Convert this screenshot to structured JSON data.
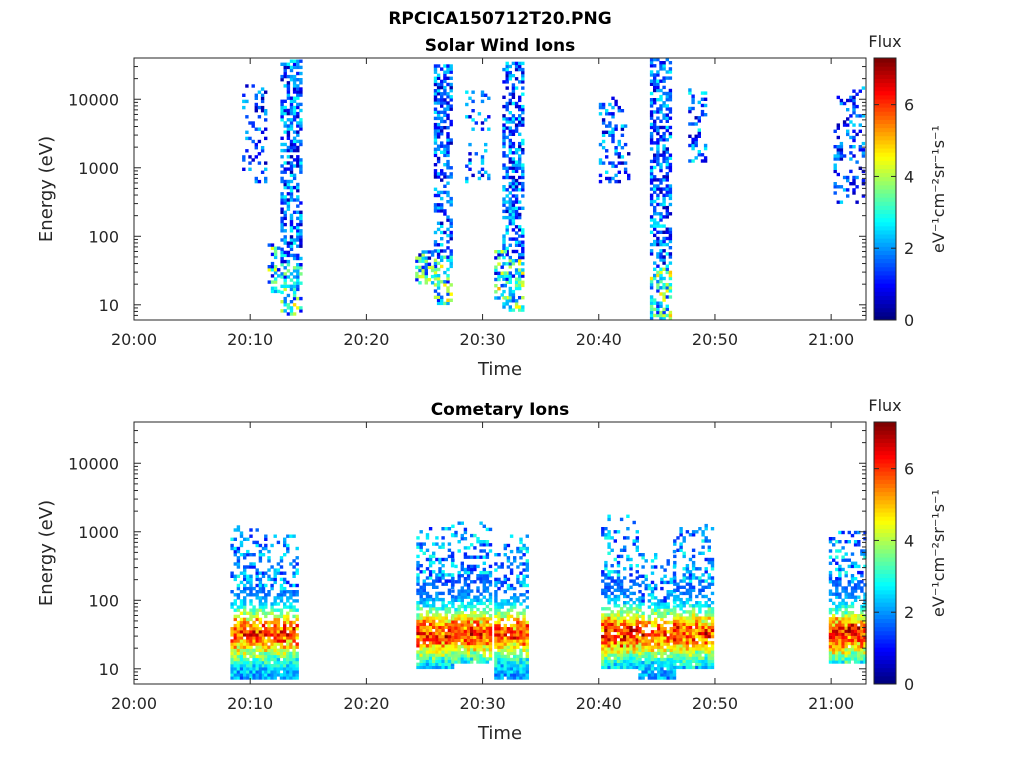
{
  "figure_title": "RPCICA150712T20.PNG",
  "colors": {
    "axis": "#262626",
    "background": "#ffffff"
  },
  "chart_data": [
    {
      "type": "heatmap",
      "title": "Solar Wind Ions",
      "xlabel": "Time",
      "ylabel": "Energy (eV)",
      "y_scale": "log",
      "x_range_minutes": [
        0,
        63
      ],
      "ylim": [
        6,
        40000
      ],
      "x_ticks": [
        "20:00",
        "20:10",
        "20:20",
        "20:30",
        "20:40",
        "20:50",
        "21:00"
      ],
      "y_ticks": [
        "10",
        "100",
        "1000",
        "10000"
      ],
      "colorbar": {
        "label": "eV⁻¹cm⁻²sr⁻¹s⁻¹",
        "title": "Flux",
        "range": [
          0,
          7.3
        ],
        "ticks": [
          "0",
          "2",
          "4",
          "6"
        ],
        "colormap": "jet"
      },
      "bursts": [
        {
          "t0": 12.6,
          "t1": 14.3,
          "eLow": 7,
          "eHigh": 38000,
          "peak": 2.6,
          "density": 0.55,
          "lowBoost": 2.2
        },
        {
          "t0": 9.3,
          "t1": 11.2,
          "eLow": 600,
          "eHigh": 15000,
          "peak": 2.2,
          "density": 0.22,
          "lowBoost": 0
        },
        {
          "t0": 11.5,
          "t1": 12.5,
          "eLow": 15,
          "eHigh": 80,
          "peak": 4.2,
          "density": 0.5,
          "lowBoost": 1.0
        },
        {
          "t0": 25.8,
          "t1": 27.3,
          "eLow": 10,
          "eHigh": 30000,
          "peak": 2.4,
          "density": 0.5,
          "lowBoost": 2.5
        },
        {
          "t0": 24.2,
          "t1": 25.8,
          "eLow": 20,
          "eHigh": 60,
          "peak": 4.0,
          "density": 0.55,
          "lowBoost": 1.2
        },
        {
          "t0": 28.5,
          "t1": 30.5,
          "eLow": 600,
          "eHigh": 13000,
          "peak": 2.4,
          "density": 0.22,
          "lowBoost": 0
        },
        {
          "t0": 31.7,
          "t1": 33.5,
          "eLow": 8,
          "eHigh": 35000,
          "peak": 2.5,
          "density": 0.55,
          "lowBoost": 2.4
        },
        {
          "t0": 31.0,
          "t1": 32.0,
          "eLow": 12,
          "eHigh": 60,
          "peak": 4.2,
          "density": 0.5,
          "lowBoost": 1.0
        },
        {
          "t0": 40.0,
          "t1": 42.6,
          "eLow": 600,
          "eHigh": 10000,
          "peak": 2.4,
          "density": 0.25,
          "lowBoost": 0
        },
        {
          "t0": 44.4,
          "t1": 46.2,
          "eLow": 6,
          "eHigh": 38000,
          "peak": 2.5,
          "density": 0.55,
          "lowBoost": 2.8
        },
        {
          "t0": 47.7,
          "t1": 49.3,
          "eLow": 1200,
          "eHigh": 14000,
          "peak": 2.6,
          "density": 0.3,
          "lowBoost": 0
        },
        {
          "t0": 60.2,
          "t1": 62.8,
          "eLow": 300,
          "eHigh": 15000,
          "peak": 2.2,
          "density": 0.25,
          "lowBoost": 0
        }
      ]
    },
    {
      "type": "heatmap",
      "title": "Cometary Ions",
      "xlabel": "Time",
      "ylabel": "Energy (eV)",
      "y_scale": "log",
      "x_range_minutes": [
        0,
        63
      ],
      "ylim": [
        6,
        40000
      ],
      "x_ticks": [
        "20:00",
        "20:10",
        "20:20",
        "20:30",
        "20:40",
        "20:50",
        "21:00"
      ],
      "y_ticks": [
        "10",
        "100",
        "1000",
        "10000"
      ],
      "colorbar": {
        "label": "eV⁻¹cm⁻²sr⁻¹s⁻¹",
        "title": "Flux",
        "range": [
          0,
          7.3
        ],
        "ticks": [
          "0",
          "2",
          "4",
          "6"
        ],
        "colormap": "jet"
      },
      "bursts": [
        {
          "t0": 8.3,
          "t1": 11.0,
          "eLow": 7,
          "eHigh": 1200,
          "peak": 6.6,
          "density": 0.8,
          "lowBoost": 0
        },
        {
          "t0": 11.2,
          "t1": 14.0,
          "eLow": 7,
          "eHigh": 900,
          "peak": 6.4,
          "density": 0.8,
          "lowBoost": 0
        },
        {
          "t0": 24.3,
          "t1": 27.3,
          "eLow": 10,
          "eHigh": 1100,
          "peak": 6.5,
          "density": 0.8,
          "lowBoost": 0
        },
        {
          "t0": 27.3,
          "t1": 30.6,
          "eLow": 12,
          "eHigh": 1300,
          "peak": 6.4,
          "density": 0.8,
          "lowBoost": 0
        },
        {
          "t0": 31.0,
          "t1": 33.8,
          "eLow": 7,
          "eHigh": 900,
          "peak": 6.3,
          "density": 0.8,
          "lowBoost": 0
        },
        {
          "t0": 40.2,
          "t1": 43.2,
          "eLow": 10,
          "eHigh": 1700,
          "peak": 6.7,
          "density": 0.8,
          "lowBoost": 0
        },
        {
          "t0": 43.4,
          "t1": 46.4,
          "eLow": 7,
          "eHigh": 500,
          "peak": 6.4,
          "density": 0.8,
          "lowBoost": 0
        },
        {
          "t0": 46.4,
          "t1": 49.8,
          "eLow": 10,
          "eHigh": 1200,
          "peak": 6.3,
          "density": 0.8,
          "lowBoost": 0
        },
        {
          "t0": 59.8,
          "t1": 62.8,
          "eLow": 12,
          "eHigh": 1000,
          "peak": 6.6,
          "density": 0.8,
          "lowBoost": 0
        }
      ]
    }
  ]
}
